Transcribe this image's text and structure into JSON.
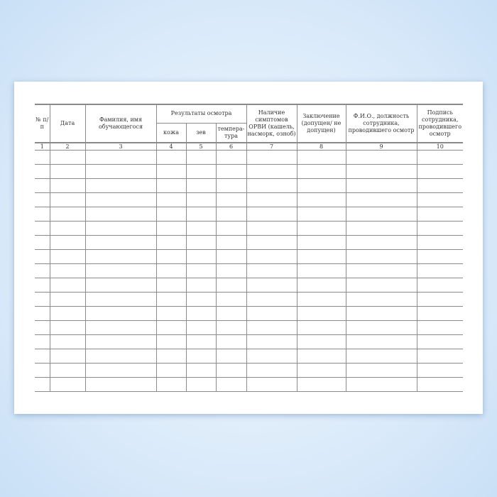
{
  "headers": {
    "num": "№ п/п",
    "date": "Дата",
    "name": "Фамилия, имя обучающегося",
    "results": "Результаты осмотра",
    "skin": "кожа",
    "throat": "зев",
    "temperature": "темпера-тура",
    "symptoms": "Наличие симптомов ОРВИ (кашель, насморк, озноб)",
    "conclusion": "Заключение (допущен/ не допущен)",
    "staff": "Ф.И.О., должность сотрудника, проводившего осмотр",
    "signature": "Подпись сотрудника, проводившего осмотр"
  },
  "column_numbers": [
    "1",
    "2",
    "3",
    "4",
    "5",
    "6",
    "7",
    "8",
    "9",
    "10"
  ]
}
